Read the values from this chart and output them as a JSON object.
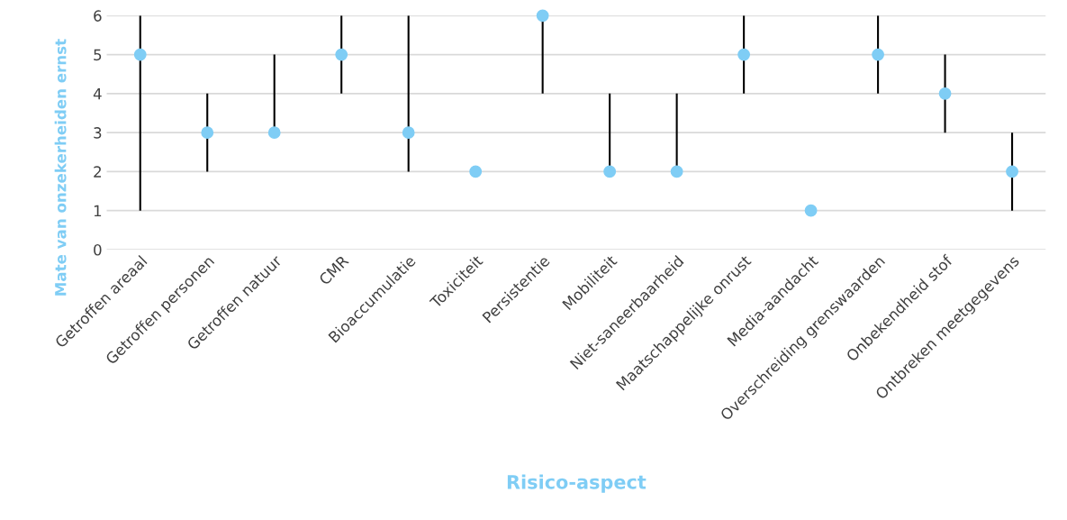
{
  "chart_data": {
    "type": "scatter",
    "categories": [
      "Getroffen areaal",
      "Getroffen personen",
      "Getroffen natuur",
      "CMR",
      "Bioaccumulatie",
      "Toxiciteit",
      "Persistentie",
      "Mobiliteit",
      "Niet-saneerbaarheid",
      "Maatschappelijke onrust",
      "Media-aandacht",
      "Overschreiding grenswaarden",
      "Onbekendheid stof",
      "Ontbreken meetgegevens"
    ],
    "values": [
      5,
      3,
      3,
      5,
      3,
      2,
      6,
      2,
      2,
      5,
      1,
      5,
      4,
      2
    ],
    "errors": [
      [
        1,
        6
      ],
      [
        2,
        4
      ],
      [
        3,
        5
      ],
      [
        4,
        6
      ],
      [
        2,
        6
      ],
      null,
      [
        4,
        6
      ],
      [
        2,
        4
      ],
      [
        2,
        4
      ],
      [
        4,
        6
      ],
      null,
      [
        4,
        6
      ],
      [
        3,
        5
      ],
      [
        1,
        3
      ]
    ],
    "color": "#7fcdf5",
    "xlabel": "Risico-aspect",
    "ylabel": "Mate van onzekerheiden ernst",
    "ylim": [
      0,
      6
    ],
    "yticks": [
      0,
      1,
      2,
      3,
      4,
      5,
      6
    ],
    "grid": "y",
    "marker": "circle"
  }
}
